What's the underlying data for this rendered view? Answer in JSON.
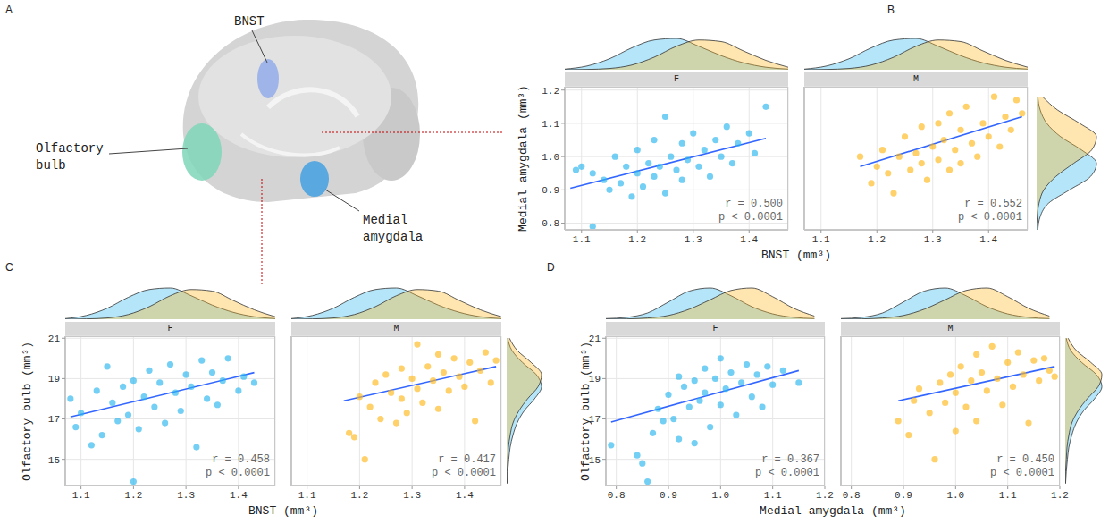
{
  "diagram": {
    "panel": "A",
    "labels": {
      "bnst": "BNST",
      "olfactory_bulb": [
        "Olfactory",
        "bulb"
      ],
      "medial_amygdala": [
        "Medial",
        "amygdala"
      ]
    }
  },
  "chart_data": [
    {
      "type": "scatter",
      "panel": "B",
      "x_label": "BNST (mm³)",
      "y_label": "Medial amygdala (mm³)",
      "xlim": [
        1.07,
        1.47
      ],
      "xticks": [
        1.1,
        1.2,
        1.3,
        1.4
      ],
      "ylim": [
        0.78,
        1.21
      ],
      "yticks": [
        0.8,
        0.9,
        {
          "value": 1,
          "label": "1.0"
        },
        1.1,
        1.2
      ],
      "grid": true,
      "x_density_at": [
        1.07,
        1.11,
        1.15,
        1.19,
        1.23,
        1.27,
        1.31,
        1.35,
        1.39,
        1.43,
        1.47
      ],
      "y_density_at": [
        0.78,
        0.82,
        0.86,
        0.9,
        0.94,
        0.98,
        1.02,
        1.06,
        1.1,
        1.14,
        1.18
      ],
      "series": [
        {
          "name": "F",
          "color": "#29b5ee",
          "x": [
            1.12,
            1.1,
            1.09,
            1.12,
            1.14,
            1.15,
            1.16,
            1.17,
            1.18,
            1.19,
            1.2,
            1.2,
            1.21,
            1.22,
            1.23,
            1.23,
            1.24,
            1.25,
            1.25,
            1.26,
            1.27,
            1.28,
            1.28,
            1.29,
            1.3,
            1.31,
            1.32,
            1.33,
            1.34,
            1.35,
            1.36,
            1.37,
            1.38,
            1.4,
            1.41,
            1.43
          ],
          "y": [
            0.79,
            0.97,
            0.96,
            0.95,
            0.93,
            0.9,
            1.0,
            0.92,
            0.97,
            0.88,
            1.02,
            0.95,
            0.91,
            0.98,
            1.05,
            0.94,
            0.97,
            1.12,
            0.89,
            1.0,
            0.96,
            1.04,
            0.93,
            0.99,
            1.07,
            0.97,
            1.02,
            0.94,
            1.05,
            1.0,
            1.09,
            0.98,
            1.04,
            1.07,
            1.01,
            1.15
          ],
          "fit": {
            "x": [
              1.08,
              1.43
            ],
            "y": [
              0.905,
              1.055
            ]
          },
          "annotations": [
            "r = 0.500",
            "p < 0.0001"
          ],
          "x_density": [
            0.02,
            0.12,
            0.35,
            0.7,
            0.95,
            1.0,
            0.75,
            0.45,
            0.22,
            0.08,
            0.02
          ],
          "y_density": [
            0.02,
            0.06,
            0.2,
            0.55,
            0.9,
            1.0,
            0.75,
            0.4,
            0.17,
            0.06,
            0.02
          ]
        },
        {
          "name": "M",
          "color": "#ffb81c",
          "x": [
            1.17,
            1.19,
            1.2,
            1.21,
            1.22,
            1.23,
            1.24,
            1.25,
            1.26,
            1.27,
            1.28,
            1.28,
            1.29,
            1.3,
            1.31,
            1.31,
            1.32,
            1.33,
            1.33,
            1.34,
            1.35,
            1.35,
            1.36,
            1.37,
            1.38,
            1.39,
            1.4,
            1.41,
            1.42,
            1.43,
            1.44,
            1.45,
            1.46
          ],
          "y": [
            1.0,
            0.92,
            0.97,
            1.02,
            0.95,
            0.89,
            1.0,
            1.06,
            0.96,
            1.01,
            1.09,
            0.98,
            0.93,
            1.03,
            1.1,
            0.99,
            1.05,
            0.96,
            1.13,
            1.02,
            1.08,
            0.98,
            1.15,
            1.04,
            1.0,
            1.1,
            1.06,
            1.18,
            1.03,
            1.12,
            1.08,
            1.17,
            1.13
          ],
          "fit": {
            "x": [
              1.17,
              1.46
            ],
            "y": [
              0.97,
              1.12
            ]
          },
          "annotations": [
            "r = 0.552",
            "p < 0.0001"
          ],
          "x_density": [
            0.0,
            0.01,
            0.04,
            0.15,
            0.4,
            0.75,
            0.95,
            0.9,
            0.6,
            0.3,
            0.08
          ],
          "y_density": [
            0.0,
            0.01,
            0.04,
            0.12,
            0.32,
            0.62,
            0.92,
            1.0,
            0.72,
            0.35,
            0.1
          ]
        }
      ]
    },
    {
      "type": "scatter",
      "panel": "C",
      "x_label": "BNST (mm³)",
      "y_label": "Olfactory bulb (mm³)",
      "xlim": [
        1.07,
        1.47
      ],
      "xticks": [
        1.1,
        1.2,
        1.3,
        1.4
      ],
      "ylim": [
        13.7,
        21.1
      ],
      "yticks": [
        15,
        17,
        19,
        21
      ],
      "grid": true,
      "x_density_at": [
        1.07,
        1.11,
        1.15,
        1.19,
        1.23,
        1.27,
        1.31,
        1.35,
        1.39,
        1.43,
        1.47
      ],
      "y_density_at": [
        13.8,
        14.4,
        15.0,
        15.6,
        16.2,
        16.8,
        17.4,
        18.0,
        18.6,
        19.2,
        19.8,
        20.4,
        21.0
      ],
      "series": [
        {
          "name": "F",
          "color": "#29b5ee",
          "x": [
            1.08,
            1.09,
            1.1,
            1.12,
            1.13,
            1.14,
            1.15,
            1.16,
            1.17,
            1.18,
            1.19,
            1.2,
            1.2,
            1.21,
            1.22,
            1.23,
            1.24,
            1.25,
            1.26,
            1.27,
            1.28,
            1.29,
            1.3,
            1.31,
            1.32,
            1.33,
            1.34,
            1.35,
            1.36,
            1.37,
            1.38,
            1.4,
            1.41,
            1.43
          ],
          "y": [
            18.0,
            16.6,
            17.3,
            15.7,
            18.4,
            16.2,
            19.6,
            17.8,
            16.9,
            18.6,
            17.2,
            13.9,
            18.9,
            16.5,
            18.1,
            19.4,
            17.6,
            18.8,
            16.8,
            19.7,
            18.3,
            17.4,
            19.2,
            18.6,
            15.6,
            19.9,
            18.0,
            19.3,
            17.7,
            18.9,
            20.0,
            18.4,
            19.1,
            18.8
          ],
          "fit": {
            "x": [
              1.08,
              1.43
            ],
            "y": [
              17.1,
              19.3
            ]
          },
          "annotations": [
            "r = 0.458",
            "p < 0.0001"
          ],
          "x_density": [
            0.02,
            0.12,
            0.35,
            0.7,
            0.95,
            1.0,
            0.75,
            0.45,
            0.22,
            0.08,
            0.02
          ],
          "y_density": [
            0.01,
            0.03,
            0.06,
            0.1,
            0.18,
            0.3,
            0.5,
            0.8,
            1.0,
            0.85,
            0.45,
            0.15,
            0.03
          ]
        },
        {
          "name": "M",
          "color": "#ffb81c",
          "x": [
            1.18,
            1.19,
            1.2,
            1.21,
            1.22,
            1.23,
            1.24,
            1.25,
            1.26,
            1.27,
            1.28,
            1.28,
            1.29,
            1.3,
            1.31,
            1.31,
            1.32,
            1.33,
            1.34,
            1.35,
            1.35,
            1.36,
            1.37,
            1.38,
            1.39,
            1.4,
            1.41,
            1.42,
            1.43,
            1.44,
            1.45,
            1.46
          ],
          "y": [
            16.3,
            16.1,
            18.1,
            15.0,
            17.6,
            18.8,
            17.0,
            19.2,
            18.3,
            16.8,
            19.5,
            18.0,
            17.3,
            19.0,
            20.7,
            18.5,
            17.8,
            19.6,
            18.9,
            20.2,
            17.5,
            19.3,
            18.4,
            20.0,
            19.1,
            18.6,
            19.8,
            16.9,
            19.4,
            20.3,
            18.8,
            19.9
          ],
          "fit": {
            "x": [
              1.17,
              1.46
            ],
            "y": [
              17.9,
              19.6
            ]
          },
          "annotations": [
            "r = 0.417",
            "p < 0.0001"
          ],
          "x_density": [
            0.0,
            0.01,
            0.04,
            0.15,
            0.4,
            0.75,
            0.95,
            0.9,
            0.6,
            0.3,
            0.08
          ],
          "y_density": [
            0.0,
            0.01,
            0.03,
            0.05,
            0.1,
            0.18,
            0.35,
            0.6,
            0.9,
            1.0,
            0.7,
            0.3,
            0.08
          ]
        }
      ]
    },
    {
      "type": "scatter",
      "panel": "D",
      "x_label": "Medial amygdala (mm³)",
      "y_label": "Olfactory bulb (mm³)",
      "xlim": [
        0.78,
        1.2
      ],
      "xticks": [
        0.8,
        0.9,
        {
          "value": 1,
          "label": "1.0"
        },
        1.1,
        1.2
      ],
      "ylim": [
        13.7,
        21.1
      ],
      "yticks": [
        15,
        17,
        19,
        21
      ],
      "grid": true,
      "x_density_at": [
        0.78,
        0.82,
        0.86,
        0.9,
        0.94,
        0.98,
        1.02,
        1.06,
        1.1,
        1.14,
        1.18
      ],
      "y_density_at": [
        13.8,
        14.4,
        15.0,
        15.6,
        16.2,
        16.8,
        17.4,
        18.0,
        18.6,
        19.2,
        19.8,
        20.4,
        21.0
      ],
      "series": [
        {
          "name": "F",
          "color": "#29b5ee",
          "x": [
            0.79,
            0.84,
            0.85,
            0.86,
            0.87,
            0.88,
            0.89,
            0.9,
            0.91,
            0.92,
            0.92,
            0.93,
            0.94,
            0.95,
            0.95,
            0.96,
            0.97,
            0.97,
            0.98,
            0.99,
            1.0,
            1.0,
            1.01,
            1.02,
            1.03,
            1.04,
            1.05,
            1.06,
            1.07,
            1.08,
            1.09,
            1.1,
            1.12,
            1.15
          ],
          "y": [
            15.7,
            15.2,
            14.8,
            13.9,
            16.3,
            17.5,
            16.9,
            18.2,
            17.0,
            19.1,
            16.0,
            18.6,
            17.6,
            18.9,
            15.8,
            17.9,
            19.5,
            18.3,
            16.6,
            19.0,
            17.7,
            20.0,
            18.5,
            19.3,
            17.2,
            18.8,
            19.7,
            18.1,
            19.2,
            17.6,
            19.6,
            18.7,
            19.4,
            18.8
          ],
          "fit": {
            "x": [
              0.79,
              1.15
            ],
            "y": [
              16.85,
              19.4
            ]
          },
          "annotations": [
            "r = 0.367",
            "p < 0.0001"
          ],
          "x_density": [
            0.02,
            0.06,
            0.2,
            0.55,
            0.9,
            1.0,
            0.75,
            0.4,
            0.17,
            0.06,
            0.02
          ],
          "y_density": [
            0.01,
            0.03,
            0.06,
            0.1,
            0.18,
            0.3,
            0.5,
            0.8,
            1.0,
            0.85,
            0.45,
            0.15,
            0.03
          ]
        },
        {
          "name": "M",
          "color": "#ffb81c",
          "x": [
            0.89,
            0.91,
            0.92,
            0.93,
            0.95,
            0.96,
            0.97,
            0.98,
            0.99,
            1.0,
            1.0,
            1.01,
            1.02,
            1.03,
            1.04,
            1.04,
            1.05,
            1.06,
            1.07,
            1.08,
            1.09,
            1.1,
            1.11,
            1.12,
            1.13,
            1.14,
            1.15,
            1.16,
            1.17,
            1.18,
            1.19
          ],
          "y": [
            16.9,
            16.2,
            17.9,
            18.5,
            17.3,
            15.0,
            18.8,
            17.8,
            19.2,
            16.4,
            18.3,
            19.6,
            17.6,
            18.9,
            20.2,
            16.9,
            19.3,
            18.4,
            20.6,
            19.0,
            17.7,
            19.8,
            18.6,
            20.3,
            19.2,
            16.8,
            19.9,
            18.9,
            20.0,
            19.4,
            19.1
          ],
          "fit": {
            "x": [
              0.89,
              1.19
            ],
            "y": [
              17.9,
              19.6
            ]
          },
          "annotations": [
            "r = 0.450",
            "p < 0.0001"
          ],
          "x_density": [
            0.0,
            0.01,
            0.04,
            0.12,
            0.32,
            0.62,
            0.92,
            1.0,
            0.72,
            0.35,
            0.1
          ],
          "y_density": [
            0.0,
            0.01,
            0.03,
            0.05,
            0.1,
            0.18,
            0.35,
            0.6,
            0.9,
            1.0,
            0.7,
            0.3,
            0.08
          ]
        }
      ]
    }
  ]
}
